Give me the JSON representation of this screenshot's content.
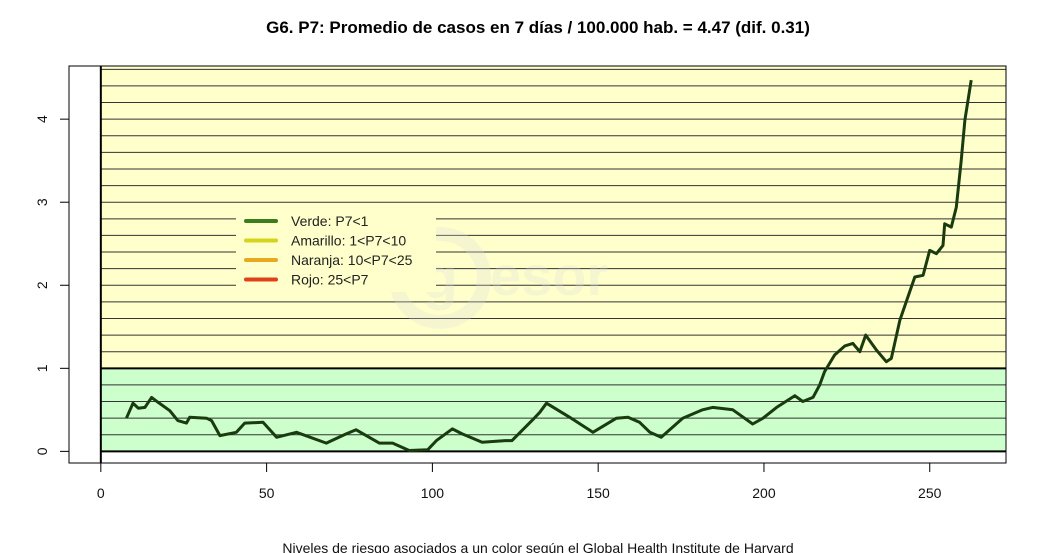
{
  "chart_data": {
    "type": "line",
    "title": "G6. P7: Promedio de casos en 7 días / 100.000 hab. = 4.47 (dif. 0.31)",
    "xlabel": "",
    "ylabel": "",
    "footnote": "Niveles de riesgo asociados a un color según el Global Health Institute de Harvard",
    "watermark": "@gesor",
    "xlim": [
      -9.6,
      273
    ],
    "ylim": [
      -0.14,
      4.64
    ],
    "x_ticks": [
      0,
      50,
      100,
      150,
      200,
      250
    ],
    "y_ticks": [
      0,
      1,
      2,
      3,
      4
    ],
    "gridlines_step": 0.2,
    "bands": [
      {
        "name": "Verde",
        "from": 0,
        "to": 1,
        "color": "#ccffcc"
      },
      {
        "name": "Amarillo",
        "from": 1,
        "to": 4.64,
        "color": "#ffffcc"
      }
    ],
    "legend": {
      "placement": "center-left",
      "entries": [
        {
          "label": "Verde:  P7<1",
          "color": "#3a7d1a"
        },
        {
          "label": "Amarillo: 1<P7<10",
          "color": "#d4d41e"
        },
        {
          "label": "Naranja: 10<P7<25",
          "color": "#e8a820"
        },
        {
          "label": "Rojo:  25<P7",
          "color": "#e0401a"
        }
      ]
    },
    "series": [
      {
        "name": "P7",
        "color": "#1a3a10",
        "x": [
          7.7,
          9.7,
          11.3,
          13.3,
          15.3,
          17.3,
          20.8,
          23.2,
          25.8,
          26.8,
          31.9,
          33.4,
          35.9,
          40.9,
          43.4,
          48.9,
          53,
          59,
          68,
          74,
          77,
          84,
          88,
          93,
          98.6,
          101.2,
          106,
          109,
          115,
          122,
          124,
          130,
          132.4,
          134.4,
          141.4,
          148.4,
          155.5,
          159,
          162.5,
          165.6,
          169,
          175.5,
          181.5,
          184.5,
          190.6,
          196.6,
          199.7,
          203.8,
          209.3,
          211.7,
          214.8,
          216.8,
          218.3,
          221.3,
          224.4,
          226.8,
          228.9,
          230.7,
          233.9,
          236.9,
          238.4,
          241,
          245.5,
          248,
          250,
          252,
          254,
          254.5,
          256.5,
          258,
          259.5,
          260.6,
          262.5
        ],
        "y": [
          0.4,
          0.58,
          0.52,
          0.53,
          0.65,
          0.59,
          0.49,
          0.37,
          0.34,
          0.41,
          0.4,
          0.37,
          0.19,
          0.23,
          0.34,
          0.35,
          0.17,
          0.23,
          0.1,
          0.21,
          0.26,
          0.1,
          0.1,
          0.01,
          0.02,
          0.13,
          0.27,
          0.21,
          0.11,
          0.13,
          0.13,
          0.37,
          0.47,
          0.58,
          0.41,
          0.23,
          0.4,
          0.41,
          0.35,
          0.23,
          0.17,
          0.4,
          0.5,
          0.53,
          0.5,
          0.33,
          0.4,
          0.53,
          0.67,
          0.6,
          0.65,
          0.8,
          0.96,
          1.16,
          1.27,
          1.3,
          1.2,
          1.4,
          1.22,
          1.08,
          1.12,
          1.58,
          2.1,
          2.12,
          2.42,
          2.38,
          2.48,
          2.74,
          2.7,
          2.94,
          3.5,
          3.99,
          4.47
        ]
      }
    ]
  }
}
